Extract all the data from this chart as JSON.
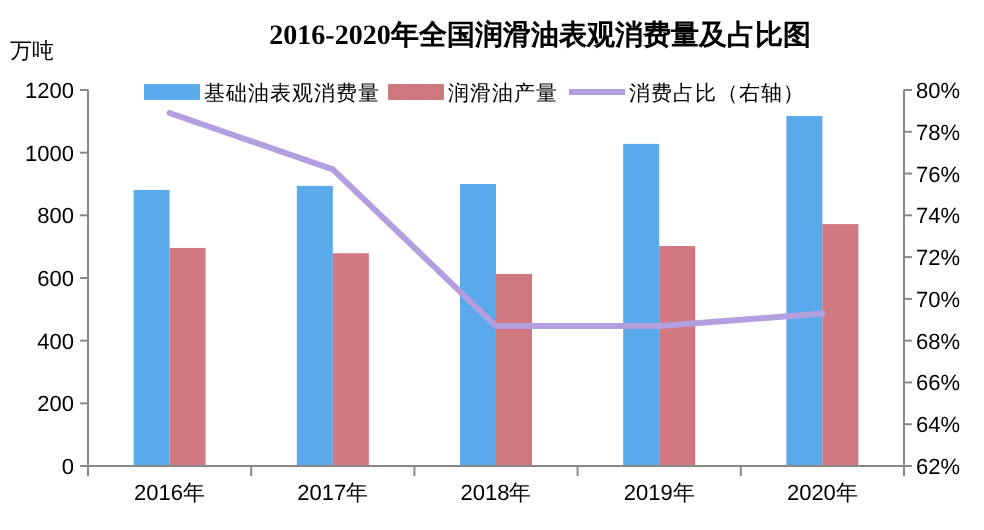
{
  "chart_data": {
    "type": "bar",
    "title": "2016-2020年全国润滑油表观消费量及占比图",
    "ylabel": "万吨",
    "categories": [
      "2016年",
      "2017年",
      "2018年",
      "2019年",
      "2020年"
    ],
    "series": [
      {
        "name": "基础油表观消费量",
        "color": "#5aaaeb",
        "values": [
          881,
          894,
          900,
          1028,
          1117
        ]
      },
      {
        "name": "润滑油产量",
        "color": "#d07880",
        "values": [
          696,
          679,
          613,
          702,
          772
        ]
      },
      {
        "name": "消费占比（右轴）",
        "type": "line",
        "axis": "y2",
        "color": "#b39ee0",
        "values": [
          78.9,
          76.2,
          68.7,
          68.7,
          69.3
        ]
      }
    ],
    "ylim": [
      0,
      1200
    ],
    "yticks": [
      0,
      200,
      400,
      600,
      800,
      1000,
      1200
    ],
    "y2lim": [
      62,
      80
    ],
    "y2ticks": [
      {
        "value": 62,
        "label": "62%"
      },
      {
        "value": 64,
        "label": "64%"
      },
      {
        "value": 66,
        "label": "66%"
      },
      {
        "value": 68,
        "label": "68%"
      },
      {
        "value": 70,
        "label": "70%"
      },
      {
        "value": 72,
        "label": "72%"
      },
      {
        "value": 74,
        "label": "74%"
      },
      {
        "value": 76,
        "label": "76%"
      },
      {
        "value": 78,
        "label": "78%"
      },
      {
        "value": 80,
        "label": "80%"
      }
    ],
    "legend": "top",
    "marker": "none"
  }
}
